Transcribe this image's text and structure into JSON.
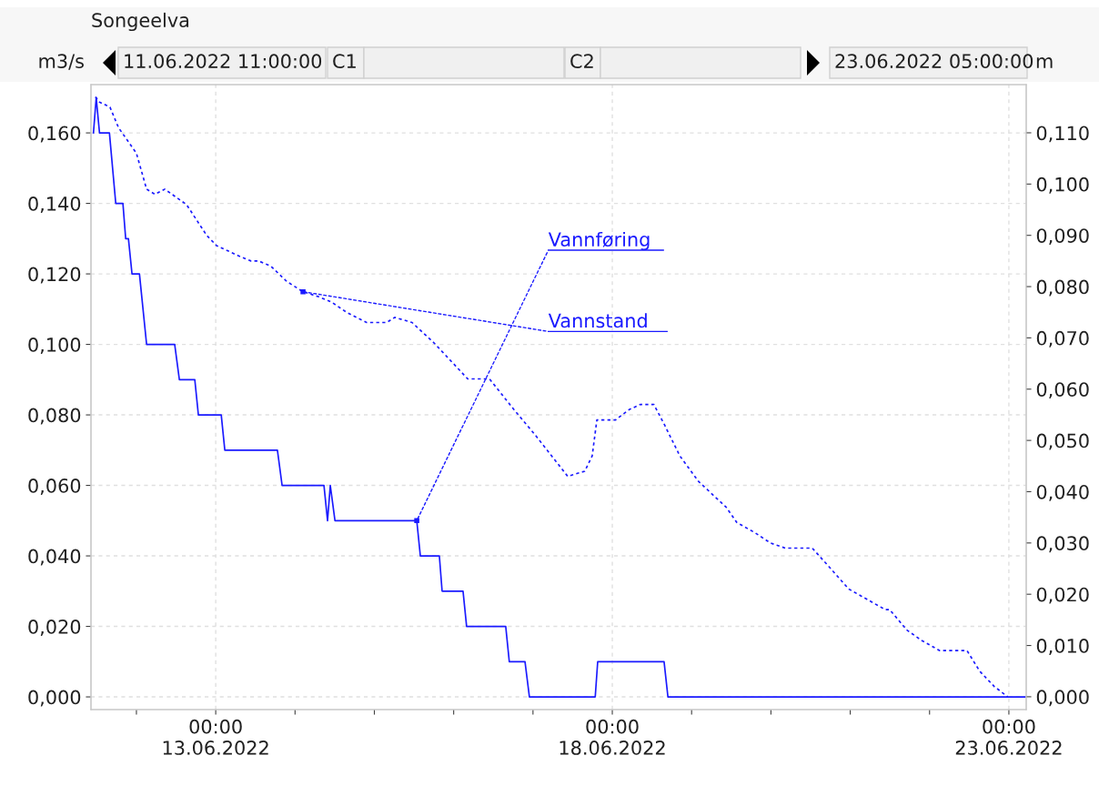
{
  "chart_data": {
    "type": "line",
    "title": "Songeelva",
    "ylabel": "m3/s",
    "y2label": "m",
    "annotations": [
      "11.06.2022 11:00:00",
      "C1",
      "C2",
      "23.06.2022 05:00:00"
    ],
    "xlim": [
      "2022-06-11T10:15",
      "2022-06-23T05:15"
    ],
    "xticks": [
      {
        "value": "2022-06-12",
        "label": null
      },
      {
        "value": "2022-06-13",
        "label": "00:00\n13.06.2022"
      },
      {
        "value": "2022-06-14",
        "label": null
      },
      {
        "value": "2022-06-15",
        "label": null
      },
      {
        "value": "2022-06-16",
        "label": null
      },
      {
        "value": "2022-06-17",
        "label": null
      },
      {
        "value": "2022-06-18",
        "label": "00:00\n18.06.2022"
      },
      {
        "value": "2022-06-19",
        "label": null
      },
      {
        "value": "2022-06-20",
        "label": null
      },
      {
        "value": "2022-06-21",
        "label": null
      },
      {
        "value": "2022-06-22",
        "label": null
      },
      {
        "value": "2022-06-23",
        "label": "00:00\n23.06.2022"
      }
    ],
    "ylim": [
      -0.0036,
      0.1737
    ],
    "yticks": [
      {
        "value": 0,
        "label": "0,000"
      },
      {
        "value": 0.02,
        "label": "0,020"
      },
      {
        "value": 0.04,
        "label": "0,040"
      },
      {
        "value": 0.06,
        "label": "0,060"
      },
      {
        "value": 0.08,
        "label": "0,080"
      },
      {
        "value": 0.1,
        "label": "0,100"
      },
      {
        "value": 0.12,
        "label": "0,120"
      },
      {
        "value": 0.14,
        "label": "0,140"
      },
      {
        "value": 0.16,
        "label": "0,160"
      }
    ],
    "y2lim": [
      -0.0025,
      0.1194
    ],
    "y2ticks": [
      {
        "value": 0,
        "label": "0,000"
      },
      {
        "value": 0.01,
        "label": "0,010"
      },
      {
        "value": 0.02,
        "label": "0,020"
      },
      {
        "value": 0.03,
        "label": "0,030"
      },
      {
        "value": 0.04,
        "label": "0,040"
      },
      {
        "value": 0.05,
        "label": "0,050"
      },
      {
        "value": 0.06,
        "label": "0,060"
      },
      {
        "value": 0.07,
        "label": "0,070"
      },
      {
        "value": 0.08,
        "label": "0,080"
      },
      {
        "value": 0.09,
        "label": "0,090"
      },
      {
        "value": 0.1,
        "label": "0,100"
      },
      {
        "value": 0.11,
        "label": "0,110"
      }
    ],
    "grid": true,
    "legend": false,
    "marker": "none",
    "series": [
      {
        "name": "Vannføring",
        "color": "#1a1aff",
        "line_style": "solid",
        "x": [
          "2022-06-11T11:00",
          "2022-06-11T11:50",
          "2022-06-11T12:50",
          "2022-06-11T15:50",
          "2022-06-11T17:45",
          "2022-06-11T19:55",
          "2022-06-11T20:45",
          "2022-06-11T21:35",
          "2022-06-11T22:40",
          "2022-06-12T00:55",
          "2022-06-12T03:05",
          "2022-06-12T11:35",
          "2022-06-12T13:00",
          "2022-06-12T17:40",
          "2022-06-12T18:45",
          "2022-06-13T01:40",
          "2022-06-13T02:45",
          "2022-06-13T18:40",
          "2022-06-13T20:05",
          "2022-06-14T08:45",
          "2022-06-14T09:50",
          "2022-06-14T10:40",
          "2022-06-14T12:05",
          "2022-06-15T12:50",
          "2022-06-15T13:55",
          "2022-06-15T19:40",
          "2022-06-15T20:30",
          "2022-06-16T02:50",
          "2022-06-16T03:55",
          "2022-06-16T15:45",
          "2022-06-16T16:50",
          "2022-06-16T21:35",
          "2022-06-16T22:55",
          "2022-06-17T18:50",
          "2022-06-17T19:35",
          "2022-06-18T15:40",
          "2022-06-18T16:50",
          "2022-06-23T05:00"
        ],
        "values": [
          0.16,
          0.17,
          0.16,
          0.16,
          0.14,
          0.14,
          0.13,
          0.13,
          0.12,
          0.12,
          0.1,
          0.1,
          0.09,
          0.09,
          0.08,
          0.08,
          0.07,
          0.07,
          0.06,
          0.06,
          0.05,
          0.06,
          0.05,
          0.05,
          0.04,
          0.04,
          0.03,
          0.03,
          0.02,
          0.02,
          0.01,
          0.01,
          0.0,
          0.0,
          0.01,
          0.01,
          0.0,
          0.0
        ]
      },
      {
        "name": "Vannstand",
        "color": "#1a1aff",
        "line_style": "dotted",
        "axis": "y2",
        "x": [
          "2022-06-11T11:35",
          "2022-06-11T12:50",
          "2022-06-11T16:00",
          "2022-06-11T18:35",
          "2022-06-12T00:00",
          "2022-06-12T03:05",
          "2022-06-12T05:35",
          "2022-06-12T08:35",
          "2022-06-12T15:10",
          "2022-06-12T21:15",
          "2022-06-13T00:15",
          "2022-06-13T06:55",
          "2022-06-13T10:40",
          "2022-06-13T13:00",
          "2022-06-13T16:40",
          "2022-06-13T21:30",
          "2022-06-14T02:25",
          "2022-06-14T07:15",
          "2022-06-14T11:00",
          "2022-06-14T15:35",
          "2022-06-14T21:40",
          "2022-06-15T03:45",
          "2022-06-15T06:10",
          "2022-06-15T11:25",
          "2022-06-15T18:05",
          "2022-06-16T04:15",
          "2022-06-16T10:50",
          "2022-06-16T18:15",
          "2022-06-17T00:45",
          "2022-06-17T10:30",
          "2022-06-17T15:40",
          "2022-06-17T17:55",
          "2022-06-17T19:20",
          "2022-06-18T01:00",
          "2022-06-18T05:05",
          "2022-06-18T08:25",
          "2022-06-18T12:35",
          "2022-06-18T15:50",
          "2022-06-18T20:25",
          "2022-06-19T02:05",
          "2022-06-19T10:25",
          "2022-06-19T13:40",
          "2022-06-19T19:10",
          "2022-06-19T23:50",
          "2022-06-20T04:20",
          "2022-06-20T09:00",
          "2022-06-20T12:30",
          "2022-06-20T18:05",
          "2022-06-20T23:35",
          "2022-06-21T05:05",
          "2022-06-21T10:35",
          "2022-06-21T11:55",
          "2022-06-21T17:10",
          "2022-06-21T21:35",
          "2022-06-22T03:05",
          "2022-06-22T11:20",
          "2022-06-22T15:10",
          "2022-06-22T19:35",
          "2022-06-22T23:40"
        ],
        "values": [
          0.117,
          0.116,
          0.115,
          0.111,
          0.106,
          0.099,
          0.098,
          0.099,
          0.096,
          0.09,
          0.088,
          0.086,
          0.085,
          0.085,
          0.084,
          0.081,
          0.079,
          0.078,
          0.077,
          0.075,
          0.073,
          0.073,
          0.074,
          0.073,
          0.069,
          0.062,
          0.062,
          0.056,
          0.051,
          0.043,
          0.044,
          0.047,
          0.054,
          0.054,
          0.056,
          0.057,
          0.057,
          0.053,
          0.047,
          0.042,
          0.037,
          0.034,
          0.032,
          0.03,
          0.029,
          0.029,
          0.029,
          0.025,
          0.021,
          0.019,
          0.017,
          0.017,
          0.013,
          0.011,
          0.009,
          0.009,
          0.005,
          0.002,
          0.0
        ]
      }
    ]
  }
}
